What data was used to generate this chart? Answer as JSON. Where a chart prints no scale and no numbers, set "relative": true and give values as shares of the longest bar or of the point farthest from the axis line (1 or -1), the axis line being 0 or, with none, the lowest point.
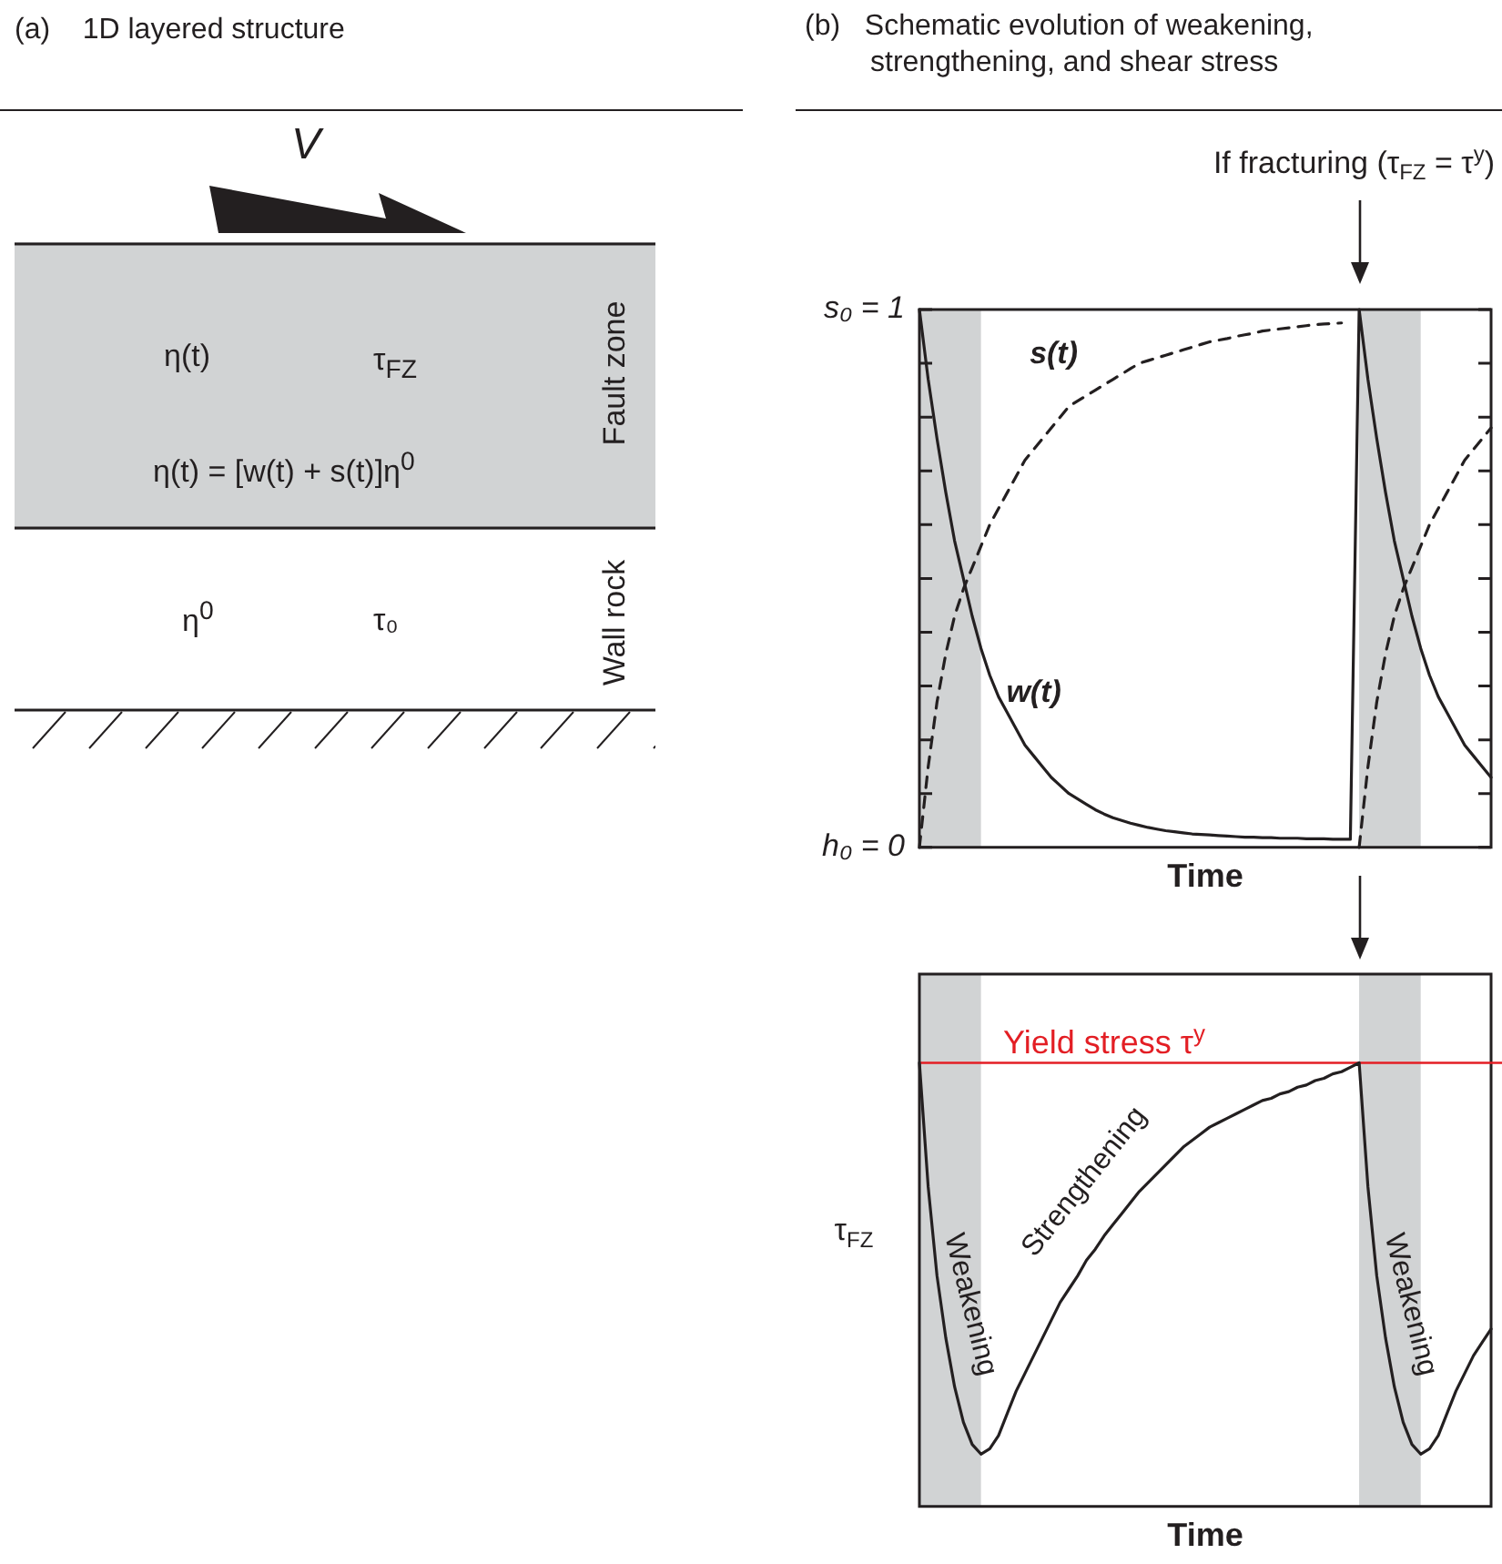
{
  "chart_data": [
    {
      "type": "other",
      "title": "(a)    1D layered structure",
      "annotations": [
        "V",
        "η(t)",
        "τ$_{FZ}$",
        "η(t) = [w(t) + s(t)]η$^{0}$",
        "Fault zone",
        "η$^{0}$",
        "τ₀",
        "Wall rock"
      ]
    },
    {
      "type": "line",
      "title": "(b)   Schematic evolution of weakening, strengthening, and shear stress",
      "xlabel": "Time",
      "tick_labels": "y",
      "grid": false,
      "legend": false,
      "marker": "none",
      "categories": [
        null,
        null,
        null,
        null,
        null,
        null,
        null,
        null,
        null,
        null,
        null,
        null,
        null,
        null,
        null,
        null,
        null,
        null,
        null,
        null,
        null,
        null,
        null,
        null,
        null,
        null,
        null,
        null,
        null,
        null,
        null,
        null,
        null,
        null,
        null,
        null,
        null,
        null,
        null,
        null,
        null,
        null,
        null,
        null,
        null,
        null,
        null,
        null,
        null,
        null,
        null,
        null,
        null,
        null,
        null,
        null,
        null,
        null,
        null,
        null,
        null,
        null,
        null,
        null,
        null,
        null
      ],
      "ylim": [
        0,
        1
      ],
      "yticks": [
        {
          "value": 0,
          "label": "h₀ = 0"
        },
        {
          "value": 0.1,
          "label": null
        },
        {
          "value": 0.2,
          "label": null
        },
        {
          "value": 0.3,
          "label": null
        },
        {
          "value": 0.4,
          "label": null
        },
        {
          "value": 0.5,
          "label": null
        },
        {
          "value": 0.6,
          "label": null
        },
        {
          "value": 0.7,
          "label": null
        },
        {
          "value": 0.8,
          "label": null
        },
        {
          "value": 0.9,
          "label": null
        },
        {
          "value": 1,
          "label": "s₀ = 1"
        }
      ],
      "annotations": [
        "If fracturing (τ$_{FZ}$ = τ$^{y}$)"
      ],
      "series": [
        {
          "name": "w(t)",
          "color": "#231f20",
          "line_style": "solid",
          "values": [
            1,
            0.87,
            0.76,
            0.66,
            0.57,
            0.5,
            0.43,
            0.37,
            0.32,
            0.28,
            0.25,
            0.22,
            0.19,
            0.17,
            0.15,
            0.13,
            0.115,
            0.1,
            0.09,
            0.08,
            0.07,
            0.062,
            0.055,
            0.05,
            0.045,
            0.041,
            0.037,
            0.034,
            0.031,
            0.029,
            0.027,
            0.025,
            0.024,
            0.023,
            0.022,
            0.021,
            0.02,
            0.019,
            0.019,
            0.018,
            0.018,
            0.017,
            0.017,
            0.017,
            0.016,
            0.016,
            0.016,
            0.015,
            0.015,
            0.015,
            1,
            0.87,
            0.76,
            0.66,
            0.57,
            0.5,
            0.43,
            0.37,
            0.32,
            0.28,
            0.25,
            0.22,
            0.19,
            0.17,
            0.15,
            0.13
          ]
        },
        {
          "name": "s(t)",
          "color": "#231f20",
          "line_style": "dashed",
          "values": [
            0,
            0.15,
            0.27,
            0.36,
            0.43,
            0.48,
            0.52,
            0.56,
            0.6,
            0.63,
            0.66,
            0.69,
            0.72,
            0.74,
            0.76,
            0.78,
            0.8,
            0.82,
            0.83,
            0.84,
            0.85,
            0.86,
            0.87,
            0.88,
            0.89,
            0.9,
            0.905,
            0.91,
            0.915,
            0.92,
            0.925,
            0.93,
            0.935,
            0.94,
            0.943,
            0.946,
            0.95,
            0.953,
            0.956,
            0.96,
            0.962,
            0.964,
            0.966,
            0.968,
            0.97,
            0.972,
            0.973,
            0.974,
            0.975,
            null,
            0,
            0.15,
            0.27,
            0.36,
            0.43,
            0.48,
            0.52,
            0.56,
            0.6,
            0.63,
            0.66,
            0.69,
            0.72,
            0.74,
            0.76,
            0.78
          ]
        }
      ]
    },
    {
      "type": "line",
      "xlabel": "Time",
      "ylabel": "τ$_{FZ}$",
      "relative": true,
      "tick_labels": false,
      "grid": false,
      "legend": false,
      "marker": "none",
      "categories": [
        null,
        null,
        null,
        null,
        null,
        null,
        null,
        null,
        null,
        null,
        null,
        null,
        null,
        null,
        null,
        null,
        null,
        null,
        null,
        null,
        null,
        null,
        null,
        null,
        null,
        null,
        null,
        null,
        null,
        null,
        null,
        null,
        null,
        null,
        null,
        null,
        null,
        null,
        null,
        null,
        null,
        null,
        null,
        null,
        null,
        null,
        null,
        null,
        null,
        null,
        null,
        null,
        null,
        null,
        null,
        null,
        null,
        null,
        null,
        null,
        null,
        null,
        null,
        null,
        null,
        null
      ],
      "ref_lines": [
        {
          "axis": "y",
          "value": 1,
          "label": "Yield stress τ$^{y}$",
          "color": "#e31e24"
        }
      ],
      "annotations": [
        "Weakening",
        "Strengthening",
        "Weakening"
      ],
      "series": [
        {
          "color": "#231f20",
          "values": [
            1,
            0.72,
            0.52,
            0.38,
            0.27,
            0.19,
            0.14,
            0.118,
            0.13,
            0.16,
            0.21,
            0.26,
            0.3,
            0.34,
            0.38,
            0.42,
            0.46,
            0.49,
            0.52,
            0.555,
            0.58,
            0.61,
            0.635,
            0.66,
            0.685,
            0.71,
            0.73,
            0.75,
            0.77,
            0.79,
            0.81,
            0.825,
            0.84,
            0.855,
            0.865,
            0.875,
            0.885,
            0.895,
            0.905,
            0.915,
            0.92,
            0.93,
            0.935,
            0.945,
            0.95,
            0.96,
            0.965,
            0.975,
            0.98,
            0.99,
            1,
            0.72,
            0.52,
            0.38,
            0.27,
            0.19,
            0.14,
            0.118,
            0.13,
            0.16,
            0.21,
            0.26,
            0.3,
            0.34,
            0.37,
            0.4
          ]
        }
      ]
    }
  ]
}
